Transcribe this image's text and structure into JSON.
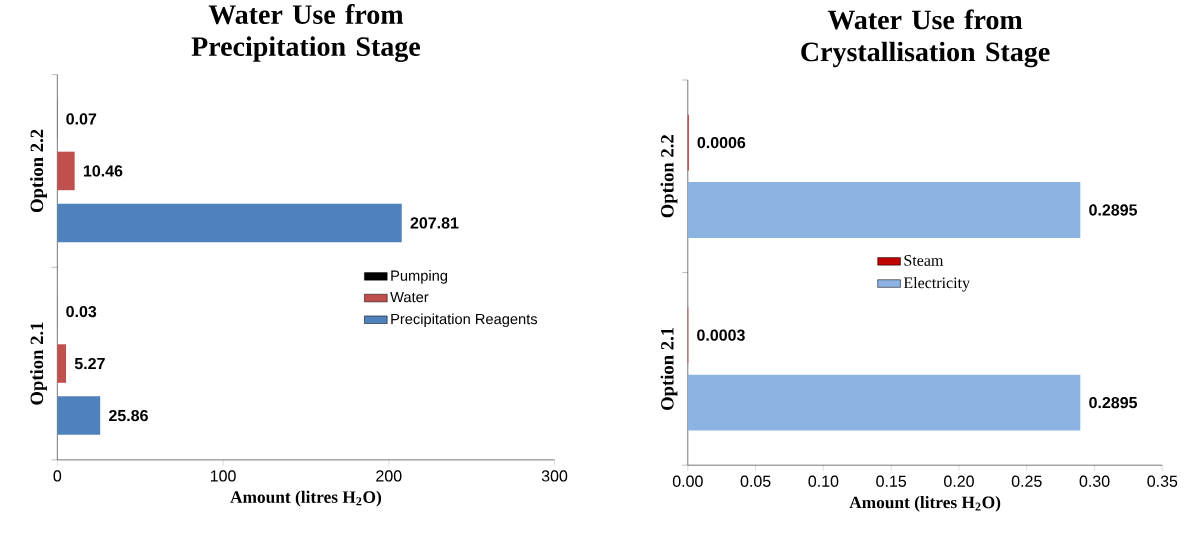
{
  "chart_data": [
    {
      "type": "bar",
      "orientation": "horizontal",
      "title": "Water Use from Precipitation Stage",
      "xlabel": "Amount (litres H$_{2}$O)",
      "categories": [
        "Option 2.2",
        "Option 2.1"
      ],
      "series": [
        {
          "name": "Pumping",
          "color": "#000000",
          "values": [
            0.07,
            0.03
          ]
        },
        {
          "name": "Water",
          "color": "#c0504d",
          "values": [
            10.46,
            5.27
          ]
        },
        {
          "name": "Precipitation Reagents",
          "color": "#4f81bd",
          "values": [
            207.81,
            25.86
          ]
        }
      ],
      "xlim": [
        0,
        300
      ],
      "xticks": [
        0,
        100,
        200,
        300
      ],
      "data_labels": true,
      "legend": "right"
    },
    {
      "type": "bar",
      "orientation": "horizontal",
      "title": "Water Use from Crystallisation Stage",
      "xlabel": "Amount (litres H$_{2}$O)",
      "categories": [
        "Option 2.2",
        "Option 2.1"
      ],
      "series": [
        {
          "name": "Steam",
          "color": "#c00000",
          "values": [
            0.0006,
            0.0003
          ]
        },
        {
          "name": "Electricity",
          "color": "#8db3e2",
          "values": [
            0.2895,
            0.2895
          ]
        }
      ],
      "xlim": [
        0,
        0.35
      ],
      "xticks": [
        {
          "value": 0,
          "label": "0.00"
        },
        {
          "value": 0.05,
          "label": "0.05"
        },
        {
          "value": 0.1,
          "label": "0.10"
        },
        {
          "value": 0.15,
          "label": "0.15"
        },
        {
          "value": 0.2,
          "label": "0.20"
        },
        {
          "value": 0.25,
          "label": "0.25"
        },
        {
          "value": 0.3,
          "label": "0.30"
        },
        {
          "value": 0.35,
          "label": "0.35"
        }
      ],
      "data_labels": true,
      "legend": "center"
    }
  ]
}
